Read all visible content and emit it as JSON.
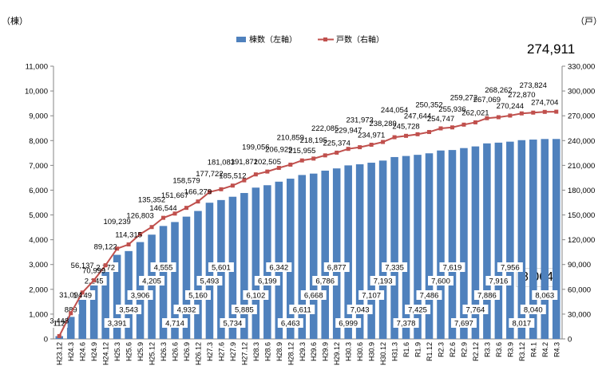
{
  "chart_data": {
    "type": "bar+line",
    "left_unit": "（棟）",
    "right_unit": "（戸）",
    "latest_units_label": "274,911",
    "latest_buildings_label": "8,064",
    "legend": [
      {
        "name": "棟数（左軸）",
        "kind": "bar",
        "color": "#4F81BD"
      },
      {
        "name": "戸数（右軸）",
        "kind": "line",
        "color": "#C0504D"
      }
    ],
    "ylim_left": [
      0,
      11000
    ],
    "ylim_right": [
      0,
      330000
    ],
    "yticks_left": [
      "0",
      "1,000",
      "2,000",
      "3,000",
      "4,000",
      "5,000",
      "6,000",
      "7,000",
      "8,000",
      "9,000",
      "10,000",
      "11,000"
    ],
    "yticks_right": [
      "0",
      "30,000",
      "60,000",
      "90,000",
      "120,000",
      "150,000",
      "180,000",
      "210,000",
      "240,000",
      "270,000",
      "300,000",
      "330,000"
    ],
    "categories": [
      "H23.12",
      "H24.3",
      "H24.6",
      "H24.9",
      "H24.12",
      "H25.3",
      "H25.6",
      "H25.9",
      "H25.12",
      "H26.3",
      "H26.6",
      "H26.9",
      "H26.12",
      "H27.3",
      "H27.6",
      "H27.9",
      "H27.12",
      "H28.3",
      "H28.6",
      "H28.9",
      "H28.12",
      "H29.3",
      "H29.6",
      "H29.9",
      "H29.12",
      "H30.3",
      "H30.6",
      "H30.9",
      "H30.12",
      "H31.3",
      "R1.6",
      "R1.9",
      "R1.12",
      "R2.3",
      "R2.6",
      "R2.9",
      "R2.12",
      "R3.3",
      "R3.6",
      "R3.9",
      "R3.12",
      "R4.1",
      "R4.2",
      "R4.3"
    ],
    "series": [
      {
        "name": "棟数（左軸）",
        "axis": "left",
        "values": [
          112,
          889,
          1749,
          2245,
          2772,
          3391,
          3543,
          3906,
          4205,
          4555,
          4714,
          4932,
          5160,
          5493,
          5601,
          5734,
          5885,
          6102,
          6199,
          6342,
          6463,
          6611,
          6668,
          6786,
          6877,
          6999,
          7043,
          7107,
          7193,
          7335,
          7378,
          7425,
          7486,
          7600,
          7619,
          7697,
          7764,
          7886,
          7916,
          7956,
          8017,
          8040,
          8063,
          8064
        ],
        "labels": [
          "112",
          "889",
          "1,749",
          "2,245",
          "2,772",
          "3,391",
          "3,543",
          "3,906",
          "4,205",
          "4,555",
          "4,714",
          "4,932",
          "5,160",
          "5,493",
          "5,601",
          "5,734",
          "5,885",
          "6,102",
          "6,199",
          "6,342",
          "6,463",
          "6,611",
          "6,668",
          "6,786",
          "6,877",
          "6,999",
          "7,043",
          "7,107",
          "7,193",
          "7,335",
          "7,378",
          "7,425",
          "7,486",
          "7,600",
          "7,619",
          "7,697",
          "7,764",
          "7,886",
          "7,916",
          "7,956",
          "8,017",
          "8,040",
          "8,063",
          ""
        ]
      },
      {
        "name": "戸数（右軸）",
        "axis": "right",
        "values": [
          3448,
          31094,
          56137,
          70999,
          89122,
          109239,
          114315,
          126803,
          135352,
          146544,
          151667,
          158579,
          166279,
          177722,
          181083,
          185512,
          191871,
          199056,
          202505,
          206929,
          210859,
          215955,
          218195,
          222085,
          225374,
          229947,
          231973,
          234971,
          238289,
          244054,
          245728,
          247644,
          250352,
          254747,
          255936,
          259272,
          262021,
          267069,
          268262,
          270244,
          272870,
          273824,
          274704,
          274911
        ],
        "labels": [
          "3,448",
          "31,094",
          "56,137",
          "70,999",
          "89,122",
          "109,239",
          "114,315",
          "126,803",
          "135,352",
          "146,544",
          "151,667",
          "158,579",
          "166,279",
          "177,722",
          "181,083",
          "185,512",
          "191,871",
          "199,056",
          "202,505",
          "206,929",
          "210,859",
          "215,955",
          "218,195",
          "222,085",
          "225,374",
          "229,947",
          "231,973",
          "234,971",
          "238,289",
          "244,054",
          "245,728",
          "247,644",
          "250,352",
          "254,747",
          "255,936",
          "259,272",
          "262,021",
          "267,069",
          "268,262",
          "270,244",
          "272,870",
          "273,824",
          "274,704",
          ""
        ]
      }
    ],
    "grid": false,
    "legend_position": "top-center"
  }
}
